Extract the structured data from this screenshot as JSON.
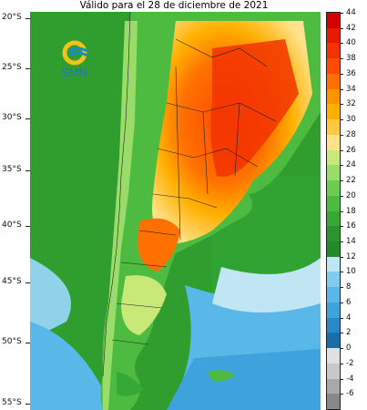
{
  "title": "Válido para el 28 de diciembre de 2021",
  "logo_text": "SMN",
  "colors": {
    "logo_yellow": "#f2c21a",
    "logo_blue": "#1b8cc4",
    "logo_text": "#2277bb",
    "ocean_green": "#2f9e2f",
    "coast_blue": "#3fb0e0"
  },
  "lat_labels": [
    "20°S",
    "25°S",
    "30°S",
    "35°S",
    "40°S",
    "45°S",
    "50°S",
    "55°S"
  ],
  "colorbar": {
    "labels": [
      "44",
      "42",
      "40",
      "38",
      "36",
      "34",
      "32",
      "30",
      "28",
      "26",
      "24",
      "22",
      "20",
      "18",
      "16",
      "14",
      "12",
      "10",
      "8",
      "6",
      "4",
      "2",
      "0",
      "-2",
      "-4",
      "-6"
    ],
    "colors": [
      "#d40000",
      "#e61a00",
      "#f23300",
      "#ff4c00",
      "#ff7000",
      "#ff9400",
      "#ffb000",
      "#ffc840",
      "#ffe28a",
      "#c8e878",
      "#9adc6a",
      "#6ccc52",
      "#4cbb40",
      "#35a835",
      "#2a942d",
      "#228a26",
      "#bfe6f2",
      "#80ccee",
      "#5ab8e8",
      "#3ea2dc",
      "#2a88c8",
      "#1a6ea8",
      "#e0e0e0",
      "#c8c8c8",
      "#a8a8a8",
      "#888888"
    ]
  }
}
